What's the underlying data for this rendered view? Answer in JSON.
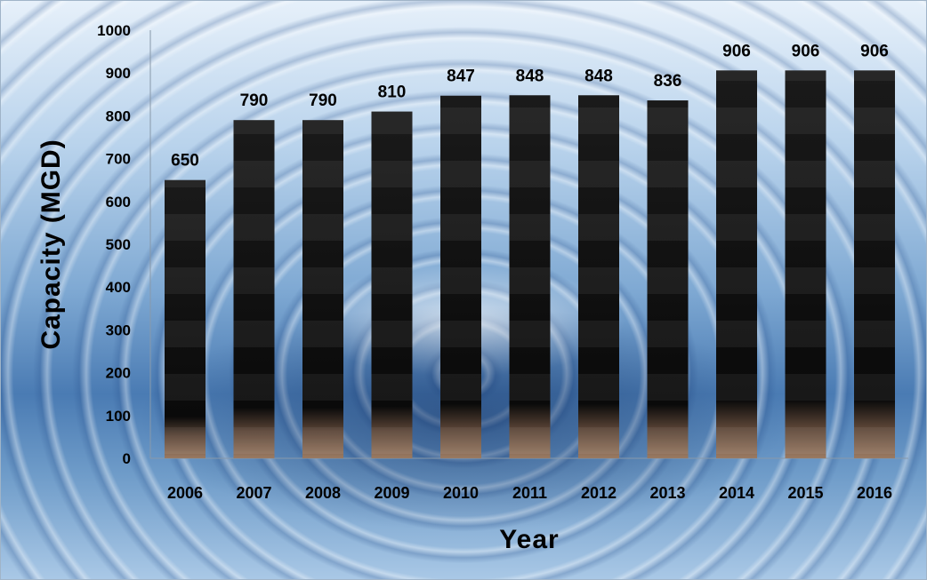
{
  "chart_data": {
    "type": "bar",
    "title": "",
    "xlabel": "Year",
    "ylabel": "Capacity (MGD)",
    "categories": [
      "2006",
      "2007",
      "2008",
      "2009",
      "2010",
      "2011",
      "2012",
      "2013",
      "2014",
      "2015",
      "2016"
    ],
    "values": [
      650,
      790,
      790,
      810,
      847,
      848,
      848,
      836,
      906,
      906,
      906
    ],
    "data_labels": [
      "650",
      "790",
      "790",
      "810",
      "847",
      "848",
      "848",
      "836",
      "906",
      "906",
      "906"
    ],
    "y_ticks": [
      "0",
      "100",
      "200",
      "300",
      "400",
      "500",
      "600",
      "700",
      "800",
      "900",
      "1000"
    ],
    "ylim": [
      0,
      1000
    ],
    "grid": false,
    "legend": "none",
    "bar_color": "#0d0d0d",
    "bar_base_color": "#8a6a55",
    "background": "water splash photo"
  }
}
